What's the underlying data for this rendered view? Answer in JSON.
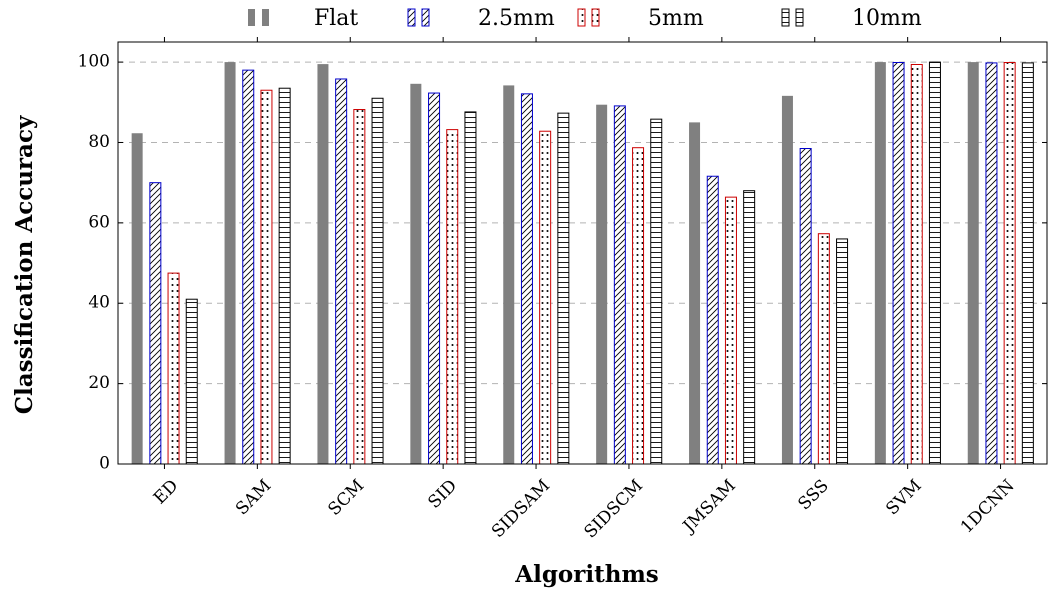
{
  "chart_data": {
    "type": "bar",
    "title": "",
    "xlabel": "Algorithms",
    "ylabel": "Classification Accuracy",
    "ylim": [
      0,
      105
    ],
    "yticks": [
      0,
      20,
      40,
      60,
      80,
      100
    ],
    "grid": "horizontal dashed",
    "legend_position": "top",
    "categories": [
      "ED",
      "SAM",
      "SCM",
      "SID",
      "SIDSAM",
      "SIDSCM",
      "JMSAM",
      "SSS",
      "SVM",
      "1DCNN"
    ],
    "series": [
      {
        "name": "Flat",
        "color": "#808080",
        "pattern": "solid",
        "values": [
          82.3,
          100,
          99.5,
          94.6,
          94.2,
          89.4,
          85.0,
          91.6,
          100,
          100
        ]
      },
      {
        "name": "2.5mm",
        "color": "#0000cc",
        "pattern": "diagonal-hatch",
        "values": [
          70.0,
          98.0,
          95.8,
          92.3,
          92.1,
          89.1,
          71.6,
          78.5,
          99.9,
          99.8
        ]
      },
      {
        "name": "5mm",
        "color": "#cc0000",
        "pattern": "dots",
        "values": [
          47.5,
          93.0,
          88.2,
          83.2,
          82.8,
          78.7,
          66.4,
          57.3,
          99.4,
          99.9
        ]
      },
      {
        "name": "10mm",
        "color": "#000000",
        "pattern": "horizontal-lines",
        "values": [
          41.0,
          93.5,
          91.0,
          87.6,
          87.3,
          85.8,
          68.0,
          56.0,
          100,
          99.8
        ]
      }
    ]
  }
}
